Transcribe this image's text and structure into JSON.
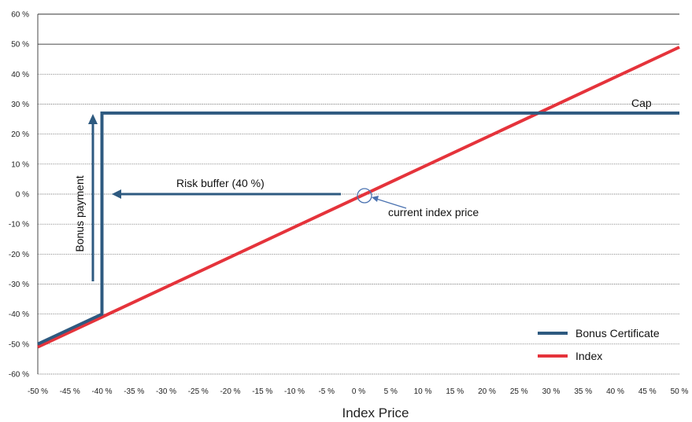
{
  "chart_data": {
    "type": "line",
    "title": "",
    "xlabel": "Index Price",
    "ylabel": "",
    "xlim": [
      -50,
      50
    ],
    "ylim": [
      -60,
      60
    ],
    "grid": true,
    "legend_position": "bottom-right",
    "x_ticks": [
      -50,
      -45,
      -40,
      -35,
      -30,
      -25,
      -20,
      -15,
      -10,
      -5,
      0,
      5,
      10,
      15,
      20,
      25,
      30,
      35,
      40,
      45,
      50
    ],
    "x_tick_labels": [
      "-50 %",
      "-45 %",
      "-40 %",
      "-35 %",
      "-30 %",
      "-25 %",
      "-20 %",
      "-15 %",
      "-10 %",
      "-5 %",
      "0 %",
      "5 %",
      "10 %",
      "15 %",
      "20 %",
      "25 %",
      "30 %",
      "35 %",
      "40 %",
      "45 %",
      "50 %"
    ],
    "y_ticks": [
      -60,
      -50,
      -40,
      -30,
      -20,
      -10,
      0,
      10,
      20,
      30,
      40,
      50,
      60
    ],
    "y_tick_labels": [
      "-60 %",
      "-50 %",
      "-40 %",
      "-30 %",
      "-20 %",
      "-10 %",
      "0 %",
      "10 %",
      "20 %",
      "30 %",
      "40 %",
      "50 %",
      "60 %"
    ],
    "series": [
      {
        "name": "Index",
        "color": "#e5333b",
        "x": [
          -50,
          50
        ],
        "y": [
          -51,
          49
        ]
      },
      {
        "name": "Bonus Certificate",
        "color": "#2e5a80",
        "x": [
          -50,
          -40,
          -40,
          50
        ],
        "y": [
          -50,
          -40,
          27,
          27
        ]
      }
    ],
    "annotations": {
      "cap": "Cap",
      "risk_buffer": "Risk buffer (40 %)",
      "bonus_payment": "Bonus payment",
      "current_index_price": "current index price"
    }
  }
}
